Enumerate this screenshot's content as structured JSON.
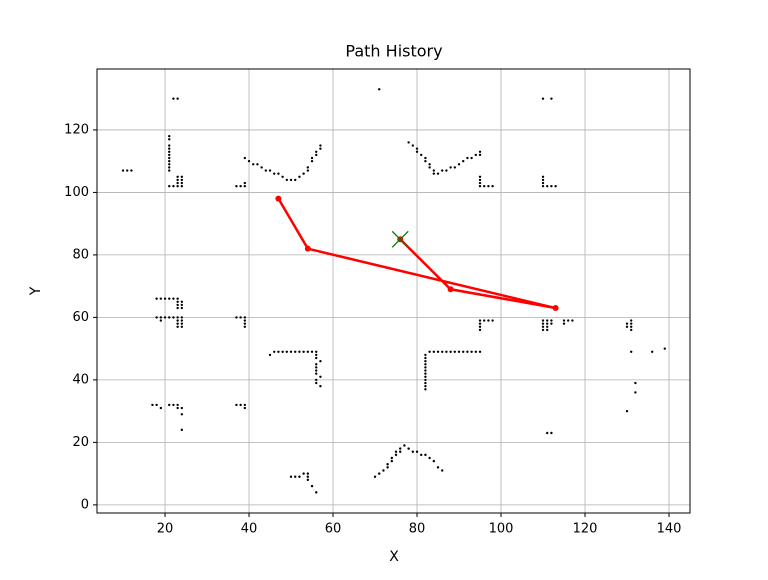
{
  "chart_data": {
    "type": "scatter",
    "title": "Path History",
    "x_label": "X",
    "y_label": "Y",
    "xlim": [
      3.8,
      145
    ],
    "ylim": [
      -2.6,
      139.5
    ],
    "xticks": [
      20,
      40,
      60,
      80,
      100,
      120,
      140
    ],
    "yticks": [
      0,
      20,
      40,
      60,
      80,
      100,
      120
    ],
    "grid": true,
    "points": {
      "color": "#000000",
      "x": [
        22,
        23,
        71,
        110,
        112,
        10,
        11,
        12,
        21,
        21,
        21,
        21,
        21,
        21,
        21,
        21,
        21,
        21,
        21,
        21,
        22,
        23,
        24,
        23,
        24,
        23,
        24,
        23,
        24,
        37,
        38,
        39,
        39,
        39,
        40,
        41,
        42,
        43,
        44,
        45,
        46,
        47,
        48,
        49,
        50,
        51,
        52,
        53,
        54,
        54,
        55,
        55,
        56,
        56,
        57,
        57,
        78,
        79,
        80,
        80,
        81,
        82,
        82,
        83,
        83,
        84,
        84,
        85,
        86,
        87,
        88,
        89,
        90,
        91,
        92,
        93,
        94,
        95,
        95,
        95,
        96,
        97,
        98,
        95,
        95,
        95,
        110,
        111,
        112,
        113,
        110,
        110,
        110,
        18,
        19,
        20,
        21,
        22,
        23,
        23,
        24,
        23,
        24,
        23,
        24,
        18,
        19,
        20,
        21,
        22,
        23,
        24,
        19,
        23,
        24,
        23,
        24,
        23,
        24,
        37,
        38,
        39,
        39,
        39,
        39,
        45,
        46,
        47,
        48,
        49,
        50,
        51,
        52,
        53,
        54,
        55,
        56,
        56,
        56,
        57,
        56,
        56,
        56,
        56,
        57,
        56,
        56,
        57,
        82,
        82,
        82,
        82,
        82,
        82,
        82,
        82,
        82,
        82,
        82,
        82,
        83,
        84,
        85,
        86,
        87,
        88,
        89,
        90,
        91,
        92,
        93,
        94,
        95,
        95,
        95,
        95,
        95,
        96,
        97,
        98,
        110,
        110,
        110,
        110,
        111,
        111,
        111,
        111,
        112,
        112,
        115,
        115,
        116,
        117,
        130,
        130,
        131,
        131,
        131,
        131,
        131,
        136,
        139,
        132,
        132,
        130,
        17,
        18,
        19,
        21,
        22,
        23,
        23,
        24,
        24,
        24,
        37,
        38,
        39,
        39,
        111,
        112,
        50,
        51,
        52,
        53,
        54,
        54,
        54,
        55,
        56,
        70,
        71,
        72,
        73,
        73,
        74,
        74,
        75,
        75,
        76,
        76,
        77,
        78,
        79,
        80,
        81,
        82,
        83,
        84,
        85,
        86
      ],
      "y": [
        130,
        130,
        133,
        130,
        130,
        107,
        107,
        107,
        118,
        117,
        115,
        114,
        113,
        112,
        111,
        110,
        109,
        108,
        107,
        102,
        102,
        102,
        102,
        103,
        103,
        104,
        104,
        105,
        105,
        102,
        102,
        102,
        103,
        111,
        110,
        109,
        109,
        108,
        107,
        107,
        106,
        106,
        105,
        104,
        104,
        104,
        105,
        106,
        107,
        108,
        110,
        111,
        112,
        113,
        114,
        115,
        116,
        115,
        114,
        113,
        112,
        111,
        110,
        109,
        108,
        107,
        106,
        106,
        107,
        107,
        108,
        108,
        109,
        110,
        111,
        111,
        112,
        112,
        113,
        102,
        102,
        102,
        102,
        103,
        104,
        105,
        102,
        102,
        102,
        102,
        103,
        104,
        105,
        66,
        66,
        66,
        66,
        66,
        66,
        65,
        65,
        64,
        64,
        63,
        63,
        60,
        60,
        60,
        60,
        60,
        60,
        60,
        59,
        59,
        59,
        58,
        58,
        57,
        57,
        60,
        60,
        60,
        59,
        58,
        57,
        48,
        49,
        49,
        49,
        49,
        49,
        49,
        49,
        49,
        49,
        49,
        49,
        48,
        47,
        46,
        45,
        44,
        43,
        42,
        41,
        40,
        39,
        38,
        37,
        38,
        39,
        40,
        41,
        42,
        43,
        44,
        45,
        46,
        47,
        48,
        49,
        49,
        49,
        49,
        49,
        49,
        49,
        49,
        49,
        49,
        49,
        49,
        49,
        56,
        57,
        58,
        59,
        59,
        59,
        59,
        56,
        57,
        58,
        59,
        56,
        57,
        58,
        59,
        59,
        58,
        58,
        59,
        59,
        59,
        57,
        58,
        56,
        57,
        58,
        59,
        49,
        49,
        50,
        39,
        36,
        30,
        32,
        32,
        31,
        32,
        32,
        32,
        31,
        31,
        29,
        24,
        32,
        32,
        32,
        31,
        23,
        23,
        9,
        9,
        9,
        10,
        10,
        9,
        8,
        6,
        4,
        9,
        10,
        11,
        12,
        13,
        14,
        15,
        16,
        17,
        17,
        18,
        19,
        18,
        17,
        17,
        16,
        16,
        15,
        14,
        12,
        11
      ]
    },
    "path": {
      "color": "#ff0000",
      "x": [
        47,
        54,
        113,
        88,
        76
      ],
      "y": [
        98,
        82,
        63,
        69,
        85
      ]
    },
    "marker": {
      "color": "#008000",
      "x": 76,
      "y": 85
    }
  }
}
